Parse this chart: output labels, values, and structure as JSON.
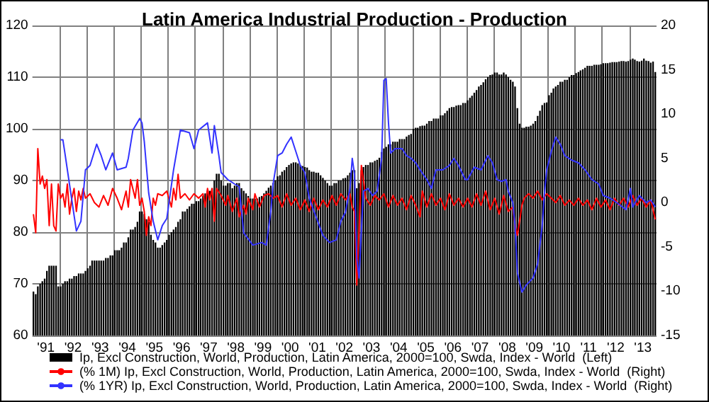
{
  "chart_data": {
    "type": "bar",
    "title": "Latin America Industrial Production - Production",
    "x": [
      "1991-01",
      "1991-02",
      "1991-03",
      "1991-04",
      "1991-05",
      "1991-06",
      "1991-07",
      "1991-08",
      "1991-09",
      "1991-10",
      "1991-11",
      "1991-12",
      "1992-01",
      "1992-02",
      "1992-03",
      "1992-04",
      "1992-05",
      "1992-06",
      "1992-07",
      "1992-08",
      "1992-09",
      "1992-10",
      "1992-11",
      "1992-12",
      "1993-01",
      "1993-02",
      "1993-03",
      "1993-04",
      "1993-05",
      "1993-06",
      "1993-07",
      "1993-08",
      "1993-09",
      "1993-10",
      "1993-11",
      "1993-12",
      "1994-01",
      "1994-02",
      "1994-03",
      "1994-04",
      "1994-05",
      "1994-06",
      "1994-07",
      "1994-08",
      "1994-09",
      "1994-10",
      "1994-11",
      "1994-12",
      "1995-01",
      "1995-02",
      "1995-03",
      "1995-04",
      "1995-05",
      "1995-06",
      "1995-07",
      "1995-08",
      "1995-09",
      "1995-10",
      "1995-11",
      "1995-12",
      "1996-01",
      "1996-02",
      "1996-03",
      "1996-04",
      "1996-05",
      "1996-06",
      "1996-07",
      "1996-08",
      "1996-09",
      "1996-10",
      "1996-11",
      "1996-12",
      "1997-01",
      "1997-02",
      "1997-03",
      "1997-04",
      "1997-05",
      "1997-06",
      "1997-07",
      "1997-08",
      "1997-09",
      "1997-10",
      "1997-11",
      "1997-12",
      "1998-01",
      "1998-02",
      "1998-03",
      "1998-04",
      "1998-05",
      "1998-06",
      "1998-07",
      "1998-08",
      "1998-09",
      "1998-10",
      "1998-11",
      "1998-12",
      "1999-01",
      "1999-02",
      "1999-03",
      "1999-04",
      "1999-05",
      "1999-06",
      "1999-07",
      "1999-08",
      "1999-09",
      "1999-10",
      "1999-11",
      "1999-12",
      "2000-01",
      "2000-02",
      "2000-03",
      "2000-04",
      "2000-05",
      "2000-06",
      "2000-07",
      "2000-08",
      "2000-09",
      "2000-10",
      "2000-11",
      "2000-12",
      "2001-01",
      "2001-02",
      "2001-03",
      "2001-04",
      "2001-05",
      "2001-06",
      "2001-07",
      "2001-08",
      "2001-09",
      "2001-10",
      "2001-11",
      "2001-12",
      "2002-01",
      "2002-02",
      "2002-03",
      "2002-04",
      "2002-05",
      "2002-06",
      "2002-07",
      "2002-08",
      "2002-09",
      "2002-10",
      "2002-11",
      "2002-12",
      "2003-01",
      "2003-02",
      "2003-03",
      "2003-04",
      "2003-05",
      "2003-06",
      "2003-07",
      "2003-08",
      "2003-09",
      "2003-10",
      "2003-11",
      "2003-12",
      "2004-01",
      "2004-02",
      "2004-03",
      "2004-04",
      "2004-05",
      "2004-06",
      "2004-07",
      "2004-08",
      "2004-09",
      "2004-10",
      "2004-11",
      "2004-12",
      "2005-01",
      "2005-02",
      "2005-03",
      "2005-04",
      "2005-05",
      "2005-06",
      "2005-07",
      "2005-08",
      "2005-09",
      "2005-10",
      "2005-11",
      "2005-12",
      "2006-01",
      "2006-02",
      "2006-03",
      "2006-04",
      "2006-05",
      "2006-06",
      "2006-07",
      "2006-08",
      "2006-09",
      "2006-10",
      "2006-11",
      "2006-12",
      "2007-01",
      "2007-02",
      "2007-03",
      "2007-04",
      "2007-05",
      "2007-06",
      "2007-07",
      "2007-08",
      "2007-09",
      "2007-10",
      "2007-11",
      "2007-12",
      "2008-01",
      "2008-02",
      "2008-03",
      "2008-04",
      "2008-05",
      "2008-06",
      "2008-07",
      "2008-08",
      "2008-09",
      "2008-10",
      "2008-11",
      "2008-12",
      "2009-01",
      "2009-02",
      "2009-03",
      "2009-04",
      "2009-05",
      "2009-06",
      "2009-07",
      "2009-08",
      "2009-09",
      "2009-10",
      "2009-11",
      "2009-12",
      "2010-01",
      "2010-02",
      "2010-03",
      "2010-04",
      "2010-05",
      "2010-06",
      "2010-07",
      "2010-08",
      "2010-09",
      "2010-10",
      "2010-11",
      "2010-12",
      "2011-01",
      "2011-02",
      "2011-03",
      "2011-04",
      "2011-05",
      "2011-06",
      "2011-07",
      "2011-08",
      "2011-09",
      "2011-10",
      "2011-11",
      "2011-12",
      "2012-01",
      "2012-02",
      "2012-03",
      "2012-04",
      "2012-05",
      "2012-06",
      "2012-07",
      "2012-08",
      "2012-09",
      "2012-10",
      "2012-11",
      "2012-12",
      "2013-01",
      "2013-02",
      "2013-03",
      "2013-04",
      "2013-05",
      "2013-06",
      "2013-07",
      "2013-08",
      "2013-09",
      "2013-10",
      "2013-11",
      "2013-12"
    ],
    "series": [
      {
        "name": "Ip, Excl Construction, World, Production, Latin America, 2000=100, Swda, Index - World  (Left)",
        "color": "#000000",
        "values": [
          68.5,
          68,
          69.5,
          70,
          70.5,
          71,
          72.5,
          73.5,
          73.5,
          73.5,
          73.5,
          69.5,
          69.5,
          70,
          70.5,
          70.5,
          71,
          71,
          71.5,
          71.5,
          72,
          72,
          72,
          72.5,
          73,
          73.5,
          74.5,
          74.5,
          74.5,
          74.5,
          74.5,
          74.5,
          75,
          75,
          75.5,
          75.5,
          76.5,
          76.5,
          76.5,
          77,
          78,
          78,
          79,
          80.5,
          80.5,
          81,
          82,
          84,
          84,
          83.5,
          82.5,
          82,
          79.5,
          78.5,
          78,
          77,
          77,
          77.5,
          78,
          78.5,
          79.5,
          80,
          80.5,
          81,
          82,
          82.5,
          84,
          84,
          84.5,
          85,
          85.5,
          85.5,
          86,
          86,
          86.5,
          87,
          87.5,
          88,
          88,
          88.5,
          90,
          91.3,
          91.3,
          90,
          89,
          89,
          89.5,
          89.5,
          88.5,
          89,
          89.5,
          89.5,
          88.5,
          88,
          87.5,
          87,
          86.5,
          86.5,
          86.5,
          86.5,
          86.8,
          87,
          87.5,
          88,
          88.6,
          89,
          89.5,
          90,
          90.8,
          91,
          91.7,
          92,
          92.6,
          93,
          93.3,
          93.5,
          93.5,
          93.3,
          93,
          92.8,
          92.6,
          92.5,
          92,
          91.7,
          91.7,
          91.5,
          91.5,
          91,
          90.5,
          90,
          89.5,
          89,
          89,
          89.5,
          89.5,
          90,
          90,
          90.4,
          90.5,
          91,
          91.5,
          92,
          92,
          88.5,
          89.5,
          92,
          92.6,
          93,
          93,
          93.5,
          93.5,
          93.8,
          94,
          94.4,
          95.5,
          96.2,
          96.5,
          97,
          97,
          97.5,
          97.5,
          97.5,
          98,
          98,
          98,
          98.5,
          98.8,
          99,
          100,
          100.2,
          100.2,
          100.5,
          100.6,
          100.6,
          101,
          101.5,
          101.5,
          102,
          102,
          102,
          102.6,
          102.6,
          103,
          103.5,
          104,
          104.2,
          104.2,
          104.5,
          104.6,
          104.6,
          105,
          105,
          105.5,
          106,
          106.4,
          107,
          107.5,
          108.2,
          108.5,
          109,
          109.6,
          110,
          110.4,
          110.5,
          110.9,
          110.9,
          110.5,
          110.5,
          110.9,
          110.5,
          110,
          109.5,
          109.1,
          108.2,
          104,
          101,
          100.2,
          100.2,
          100.4,
          100.4,
          100.6,
          101,
          101.5,
          102.5,
          103.5,
          104.6,
          105,
          105.1,
          106.5,
          107,
          107.8,
          108.2,
          108.5,
          109.1,
          109.1,
          109.5,
          109.5,
          110,
          110.4,
          110.4,
          110.8,
          111,
          111.3,
          111.5,
          111.8,
          112.2,
          112.2,
          112.2,
          112.4,
          112.4,
          112.4,
          112.5,
          112.7,
          112.7,
          112.7,
          112.8,
          112.9,
          112.9,
          112.9,
          113,
          113.1,
          113.1,
          113,
          113.1,
          113.4,
          113.6,
          113.4,
          113.1,
          113,
          113.2,
          113.6,
          113.2,
          113.1,
          112.8,
          113,
          111
        ]
      },
      {
        "name": "(% 1M) Ip, Excl Construction, World, Production, Latin America, 2000=100, Swda, Index - World  (Right)",
        "type": "line",
        "axis": "y2",
        "color": "#ff0000",
        "x": [
          "1991-01",
          "1991-02",
          "1991-03",
          "1991-04",
          "1991-05",
          "1991-06",
          "1991-07",
          "1991-08",
          "1991-09",
          "1991-10",
          "1991-11",
          "1991-12",
          "1992-01",
          "1992-02",
          "1992-03",
          "1992-04",
          "1992-05",
          "1992-06",
          "1992-07",
          "1992-08",
          "1992-09",
          "1992-10",
          "1992-11",
          "1992-12",
          "1993-02",
          "1993-04",
          "1993-06",
          "1993-08",
          "1993-10",
          "1993-12",
          "1994-02",
          "1994-04",
          "1994-06",
          "1994-07",
          "1994-08",
          "1994-10",
          "1994-11",
          "1994-12",
          "1995-01",
          "1995-02",
          "1995-03",
          "1995-04",
          "1995-05",
          "1995-06",
          "1995-07",
          "1995-08",
          "1995-10",
          "1995-12",
          "1996-02",
          "1996-03",
          "1996-04",
          "1996-05",
          "1996-06",
          "1996-08",
          "1996-10",
          "1996-12",
          "1997-02",
          "1997-04",
          "1997-05",
          "1997-06",
          "1997-07",
          "1997-08",
          "1997-09",
          "1997-10",
          "1997-12",
          "1998-02",
          "1998-03",
          "1998-05",
          "1998-07",
          "1998-08",
          "1998-10",
          "1998-11",
          "1998-12",
          "1999-02",
          "1999-03",
          "1999-05",
          "1999-07",
          "1999-09",
          "1999-11",
          "2000-01",
          "2000-03",
          "2000-05",
          "2000-07",
          "2000-09",
          "2000-11",
          "2001-01",
          "2001-03",
          "2001-05",
          "2001-07",
          "2001-09",
          "2001-11",
          "2002-01",
          "2002-03",
          "2002-05",
          "2002-07",
          "2002-09",
          "2002-10",
          "2002-11",
          "2002-12",
          "2003-01",
          "2003-02",
          "2003-03",
          "2003-04",
          "2003-06",
          "2003-08",
          "2003-10",
          "2003-12",
          "2004-02",
          "2004-04",
          "2004-06",
          "2004-08",
          "2004-10",
          "2004-12",
          "2005-02",
          "2005-04",
          "2005-05",
          "2005-07",
          "2005-09",
          "2005-11",
          "2006-01",
          "2006-03",
          "2006-05",
          "2006-07",
          "2006-09",
          "2006-11",
          "2007-01",
          "2007-03",
          "2007-05",
          "2007-07",
          "2007-09",
          "2007-11",
          "2008-01",
          "2008-03",
          "2008-05",
          "2008-07",
          "2008-09",
          "2008-10",
          "2008-11",
          "2008-12",
          "2009-01",
          "2009-02",
          "2009-04",
          "2009-06",
          "2009-08",
          "2009-10",
          "2009-12",
          "2010-02",
          "2010-04",
          "2010-06",
          "2010-08",
          "2010-10",
          "2010-12",
          "2011-02",
          "2011-04",
          "2011-06",
          "2011-08",
          "2011-10",
          "2011-12",
          "2012-02",
          "2012-04",
          "2012-06",
          "2012-08",
          "2012-10",
          "2012-12",
          "2013-02",
          "2013-04",
          "2013-06",
          "2013-08",
          "2013-10",
          "2013-12"
        ],
        "values": [
          -1.3,
          -3.4,
          6.1,
          2.1,
          3.0,
          1.6,
          2.6,
          -2.6,
          2.1,
          -2.6,
          -3.2,
          2.1,
          0.5,
          1.0,
          -0.5,
          2.1,
          -1.3,
          0.5,
          1.6,
          -1.0,
          1.3,
          0.3,
          1.6,
          0.5,
          1.0,
          0,
          -0.5,
          0.8,
          -0.3,
          1.6,
          0.5,
          -0.8,
          1.3,
          -0.5,
          2.6,
          0.5,
          2.6,
          -0.3,
          0.5,
          -1.0,
          -3.7,
          -1.6,
          -2.6,
          0.5,
          -0.3,
          1.0,
          0.8,
          1.3,
          -0.5,
          1.6,
          0.3,
          3.2,
          0.5,
          1.0,
          0.3,
          1.0,
          0.5,
          1.0,
          -0.5,
          1.6,
          0.3,
          1.6,
          -2.1,
          1.6,
          0.8,
          -0.3,
          0.8,
          -1.0,
          0.5,
          -1.6,
          -0.3,
          -1.3,
          0.5,
          -0.8,
          1.0,
          -0.5,
          0.8,
          1.0,
          0.5,
          0.8,
          -0.5,
          1.0,
          -0.3,
          0.5,
          -0.8,
          0.3,
          -1.0,
          0.5,
          -0.8,
          0.3,
          -0.5,
          0.8,
          -0.3,
          1.0,
          0.3,
          1.0,
          -0.5,
          -1.0,
          -9.3,
          -3.0,
          4.2,
          2.6,
          0.5,
          -0.3,
          0.8,
          0.3,
          1.0,
          -0.5,
          0.8,
          -0.3,
          0.5,
          -0.8,
          0.8,
          -0.3,
          -1.6,
          1.3,
          -0.5,
          1.0,
          -0.3,
          0.5,
          -0.8,
          1.0,
          -0.3,
          0.5,
          -0.5,
          0.5,
          -0.5,
          1.0,
          -0.3,
          1.3,
          -0.8,
          0.5,
          -1.3,
          0.8,
          -1.0,
          -0.5,
          -2.6,
          -3.7,
          -2.1,
          -0.3,
          0.5,
          1.0,
          0.5,
          1.3,
          0.3,
          1.0,
          0.5,
          0.0,
          0.8,
          -0.3,
          0.3,
          -0.3,
          0.5,
          -0.3,
          0.3,
          -0.8,
          0.5,
          -0.5,
          0.3,
          -0.8,
          0.5,
          -0.3,
          0.5,
          -0.5,
          0.8,
          -0.3,
          0.5,
          -0.5,
          0.3,
          -1.9
        ]
      },
      {
        "name": "(% 1YR) Ip, Excl Construction, World, Production, Latin America, 2000=100, Swda, Index - World  (Right)",
        "type": "line",
        "axis": "y2",
        "color": "#3333ff",
        "x": [
          "1992-01",
          "1992-02",
          "1992-03",
          "1992-08",
          "1992-10",
          "1992-12",
          "1993-02",
          "1993-05",
          "1993-07",
          "1993-09",
          "1993-12",
          "1994-02",
          "1994-06",
          "1994-07",
          "1994-09",
          "1994-12",
          "1995-01",
          "1995-02",
          "1995-04",
          "1995-06",
          "1995-08",
          "1995-10",
          "1995-12",
          "1996-03",
          "1996-06",
          "1996-10",
          "1996-12",
          "1997-02",
          "1997-06",
          "1997-08",
          "1997-09",
          "1997-11",
          "1997-12",
          "1998-03",
          "1998-06",
          "1998-08",
          "1998-10",
          "1999-02",
          "1999-06",
          "1999-08",
          "1999-10",
          "1999-11",
          "2000-01",
          "2000-03",
          "2000-05",
          "2000-07",
          "2000-09",
          "2000-11",
          "2001-01",
          "2001-03",
          "2001-06",
          "2001-09",
          "2001-12",
          "2002-03",
          "2002-05",
          "2002-07",
          "2002-09",
          "2002-10",
          "2002-11",
          "2002-12",
          "2003-01",
          "2003-02",
          "2003-03",
          "2003-05",
          "2003-07",
          "2003-09",
          "2003-11",
          "2003-12",
          "2004-01",
          "2004-02",
          "2004-03",
          "2004-05",
          "2004-08",
          "2004-10",
          "2004-12",
          "2005-02",
          "2005-04",
          "2005-07",
          "2005-09",
          "2005-11",
          "2006-02",
          "2006-05",
          "2006-07",
          "2006-09",
          "2006-12",
          "2007-01",
          "2007-04",
          "2007-07",
          "2007-10",
          "2007-12",
          "2008-02",
          "2008-04",
          "2008-06",
          "2008-07",
          "2008-09",
          "2008-10",
          "2008-11",
          "2009-01",
          "2009-03",
          "2009-06",
          "2009-08",
          "2009-10",
          "2009-11",
          "2009-12",
          "2010-02",
          "2010-04",
          "2010-06",
          "2010-08",
          "2010-11",
          "2011-02",
          "2011-05",
          "2011-08",
          "2011-11",
          "2012-01",
          "2012-04",
          "2012-07",
          "2012-11",
          "2013-01",
          "2013-02",
          "2013-05",
          "2013-08",
          "2013-10",
          "2013-12"
        ],
        "values": [
          7.1,
          7.1,
          5.5,
          -3.2,
          -2.1,
          3.7,
          4.2,
          6.6,
          5.3,
          3.7,
          5.6,
          3.7,
          4.0,
          5.0,
          8.2,
          9.5,
          9.0,
          6.9,
          1.1,
          -2.1,
          -4.2,
          -2.6,
          -1.8,
          3.7,
          8.2,
          7.9,
          6.1,
          8.2,
          9.0,
          5.6,
          8.7,
          5.3,
          3.4,
          2.6,
          2.1,
          1.8,
          -3.4,
          -4.8,
          -4.5,
          -4.8,
          -1.0,
          2.1,
          5.3,
          5.6,
          6.6,
          7.4,
          5.8,
          4.2,
          3.4,
          0.5,
          -1.6,
          -3.7,
          -4.5,
          -4.2,
          -2.1,
          -1.1,
          1.6,
          5.0,
          3.2,
          -6.3,
          -8.5,
          -3.2,
          1.3,
          1.6,
          0.8,
          1.3,
          5.0,
          13.8,
          14.0,
          9.0,
          5.6,
          6.1,
          6.1,
          5.3,
          5.0,
          4.5,
          3.7,
          2.6,
          1.6,
          3.7,
          3.7,
          4.2,
          5.0,
          4.2,
          2.6,
          2.6,
          4.0,
          3.7,
          5.3,
          4.5,
          2.6,
          2.4,
          2.6,
          1.3,
          0.0,
          -2.6,
          -7.9,
          -10.1,
          -9.3,
          -8.5,
          -6.9,
          -2.6,
          1.1,
          3.7,
          5.8,
          7.4,
          6.6,
          5.3,
          4.8,
          4.5,
          3.7,
          2.6,
          2.1,
          0.8,
          0.5,
          0.0,
          -0.8,
          1.6,
          -0.5,
          0.8,
          0.0,
          0.3,
          -0.5
        ]
      }
    ],
    "xlim": [
      "1991-01-01",
      "2014-01-01"
    ],
    "xticks": [
      {
        "value": "1991-07-01",
        "label": "'91"
      },
      {
        "value": "1992-07-01",
        "label": "'92"
      },
      {
        "value": "1993-07-01",
        "label": "'93"
      },
      {
        "value": "1994-07-01",
        "label": "'94"
      },
      {
        "value": "1995-07-01",
        "label": "'95"
      },
      {
        "value": "1996-07-01",
        "label": "'96"
      },
      {
        "value": "1997-07-01",
        "label": "'97"
      },
      {
        "value": "1998-07-01",
        "label": "'98"
      },
      {
        "value": "1999-07-01",
        "label": "'99"
      },
      {
        "value": "2000-07-01",
        "label": "'00"
      },
      {
        "value": "2001-07-01",
        "label": "'01"
      },
      {
        "value": "2002-07-01",
        "label": "'02"
      },
      {
        "value": "2003-07-01",
        "label": "'03"
      },
      {
        "value": "2004-07-01",
        "label": "'04"
      },
      {
        "value": "2005-07-01",
        "label": "'05"
      },
      {
        "value": "2006-07-01",
        "label": "'06"
      },
      {
        "value": "2007-07-01",
        "label": "'07"
      },
      {
        "value": "2008-07-01",
        "label": "'08"
      },
      {
        "value": "2009-07-01",
        "label": "'09"
      },
      {
        "value": "2010-07-01",
        "label": "'10"
      },
      {
        "value": "2011-07-01",
        "label": "'11"
      },
      {
        "value": "2012-07-01",
        "label": "'12"
      },
      {
        "value": "2013-07-01",
        "label": "'13"
      },
      {
        "value": "1992-01-01",
        "label": null
      },
      {
        "value": "1993-01-01",
        "label": null
      },
      {
        "value": "1994-01-01",
        "label": null
      },
      {
        "value": "1995-01-01",
        "label": null
      },
      {
        "value": "1996-01-01",
        "label": null
      },
      {
        "value": "1997-01-01",
        "label": null
      },
      {
        "value": "1998-01-01",
        "label": null
      },
      {
        "value": "1999-01-01",
        "label": null
      },
      {
        "value": "2000-01-01",
        "label": null
      },
      {
        "value": "2001-01-01",
        "label": null
      },
      {
        "value": "2002-01-01",
        "label": null
      },
      {
        "value": "2003-01-01",
        "label": null
      },
      {
        "value": "2004-01-01",
        "label": null
      },
      {
        "value": "2005-01-01",
        "label": null
      },
      {
        "value": "2006-01-01",
        "label": null
      },
      {
        "value": "2007-01-01",
        "label": null
      },
      {
        "value": "2008-01-01",
        "label": null
      },
      {
        "value": "2009-01-01",
        "label": null
      },
      {
        "value": "2010-01-01",
        "label": null
      },
      {
        "value": "2011-01-01",
        "label": null
      },
      {
        "value": "2012-01-01",
        "label": null
      },
      {
        "value": "2013-01-01",
        "label": null
      }
    ],
    "ylim": [
      60,
      120
    ],
    "yticks": [
      60,
      70,
      80,
      90,
      100,
      110,
      120
    ],
    "y2lim": [
      -15,
      20
    ],
    "y2ticks": [
      -15,
      -10,
      -5,
      0,
      5,
      10,
      15,
      20
    ],
    "grid": true,
    "legend": "bottom"
  }
}
